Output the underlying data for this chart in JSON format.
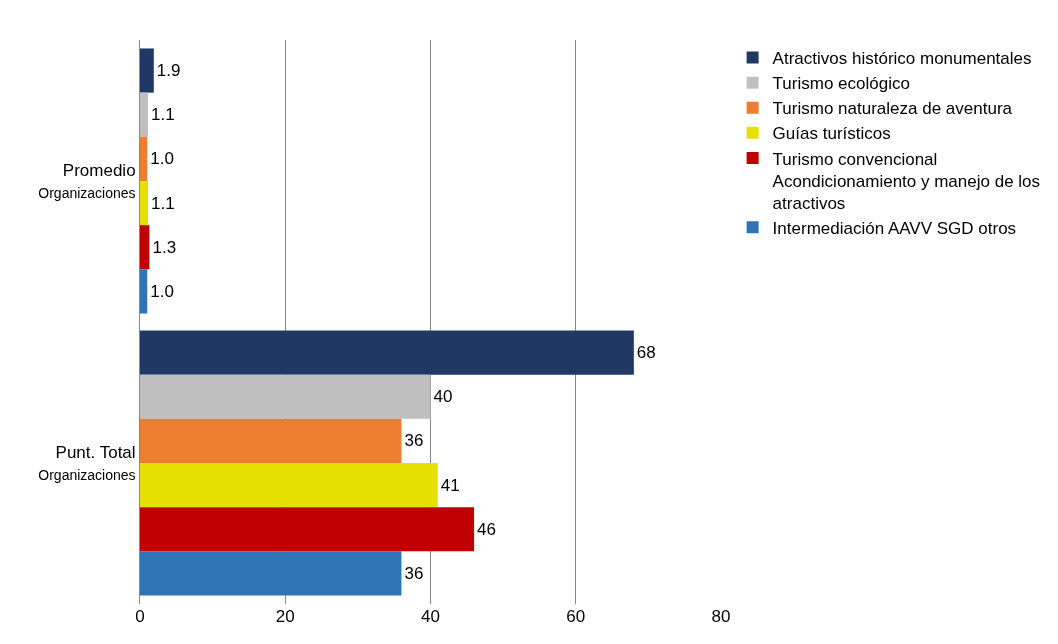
{
  "chart_data": {
    "type": "bar",
    "orientation": "horizontal",
    "categories": [
      "Promedio Organizaciones",
      "Punt. Total Organizaciones"
    ],
    "series": [
      {
        "name": "Atractivos histórico monumentales",
        "color": "#1f3864",
        "values": [
          1.9,
          68
        ],
        "value_labels": [
          "1.9",
          "68"
        ]
      },
      {
        "name": "Turismo ecológico",
        "color": "#bfbfbf",
        "values": [
          1.1,
          40
        ],
        "value_labels": [
          "1.1",
          "40"
        ]
      },
      {
        "name": "Turismo naturaleza de aventura",
        "color": "#ed7d31",
        "values": [
          1.0,
          36
        ],
        "value_labels": [
          "1.0",
          "36"
        ]
      },
      {
        "name": "Guías turísticos",
        "color": "#e5e000",
        "values": [
          1.1,
          41
        ],
        "value_labels": [
          "1.1",
          "41"
        ]
      },
      {
        "name": "Turismo convencional Acondicionamiento y manejo de los atractivos",
        "color": "#c00000",
        "values": [
          1.3,
          46
        ],
        "value_labels": [
          "1.3",
          "46"
        ]
      },
      {
        "name": "Intermediación AAVV SGD otros",
        "color": "#2e75b6",
        "values": [
          1.0,
          36
        ],
        "value_labels": [
          "1.0",
          "36"
        ]
      }
    ],
    "xlim": [
      0,
      80
    ],
    "xticks": [
      0,
      20,
      40,
      60,
      80
    ],
    "grid": "x",
    "legend": "right"
  }
}
